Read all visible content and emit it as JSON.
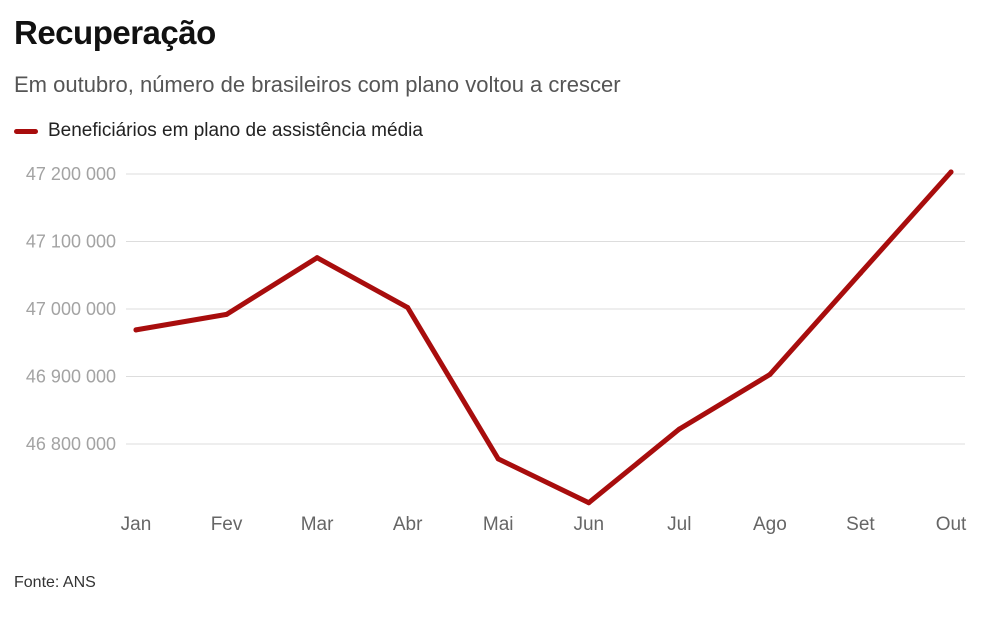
{
  "header": {
    "title": "Recuperação",
    "subtitle": "Em outubro, número de brasileiros com plano voltou a crescer"
  },
  "footer": {
    "source": "Fonte: ANS"
  },
  "colors": {
    "series": "#a80d0d",
    "grid": "#dddddd"
  },
  "chart_data": {
    "type": "line",
    "title": "Recuperação",
    "subtitle": "Em outubro, número de brasileiros com plano voltou a crescer",
    "xlabel": "",
    "ylabel": "",
    "categories": [
      "Jan",
      "Fev",
      "Mar",
      "Abr",
      "Mai",
      "Jun",
      "Jul",
      "Ago",
      "Set",
      "Out"
    ],
    "series": [
      {
        "name": "Beneficiários em plano de assistência média",
        "values": [
          46969000,
          46992000,
          47076000,
          47002000,
          46778000,
          46713000,
          46822000,
          46903000,
          47053000,
          47203000
        ]
      }
    ],
    "ylim": [
      46710000,
      47200000
    ],
    "yticks": [
      46800000,
      46900000,
      47000000,
      47100000,
      47200000
    ],
    "ytick_labels": [
      "46 800 000",
      "46 900 000",
      "47 000 000",
      "47 100 000",
      "47 200 000"
    ],
    "grid": true,
    "legend_position": "top-left"
  }
}
